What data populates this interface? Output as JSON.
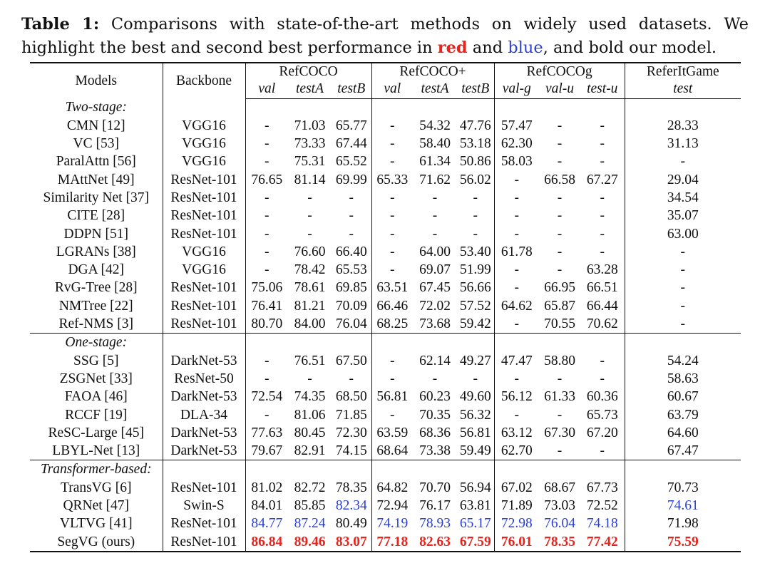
{
  "caption": {
    "label": "Table 1:",
    "text_before": " Comparisons with state-of-the-art methods on widely used datasets. We highlight the best and second best performance in ",
    "red_word": "red",
    "and_word": " and ",
    "blue_word": "blue",
    "text_after": ", and bold our model."
  },
  "headers": {
    "models": "Models",
    "backbone": "Backbone",
    "datasets": [
      "RefCOCO",
      "RefCOCO+",
      "RefCOCOg",
      "ReferItGame"
    ],
    "splits": [
      "val",
      "testA",
      "testB",
      "val",
      "testA",
      "testB",
      "val-g",
      "val-u",
      "test-u",
      "test"
    ]
  },
  "colors": {
    "best": "#e8241c",
    "second": "#2a3fd6"
  },
  "groups": [
    {
      "label": "Two-stage:",
      "rows": [
        {
          "model": "CMN [12]",
          "backbone": "VGG16",
          "values": [
            "-",
            "71.03",
            "65.77",
            "-",
            "54.32",
            "47.76",
            "57.47",
            "-",
            "-",
            "28.33"
          ]
        },
        {
          "model": "VC [53]",
          "backbone": "VGG16",
          "values": [
            "-",
            "73.33",
            "67.44",
            "-",
            "58.40",
            "53.18",
            "62.30",
            "-",
            "-",
            "31.13"
          ]
        },
        {
          "model": "ParalAttn [56]",
          "backbone": "VGG16",
          "values": [
            "-",
            "75.31",
            "65.52",
            "-",
            "61.34",
            "50.86",
            "58.03",
            "-",
            "-",
            "-"
          ]
        },
        {
          "model": "MAttNet [49]",
          "backbone": "ResNet-101",
          "values": [
            "76.65",
            "81.14",
            "69.99",
            "65.33",
            "71.62",
            "56.02",
            "-",
            "66.58",
            "67.27",
            "29.04"
          ]
        },
        {
          "model": "Similarity Net [37]",
          "backbone": "ResNet-101",
          "values": [
            "-",
            "-",
            "-",
            "-",
            "-",
            "-",
            "-",
            "-",
            "-",
            "34.54"
          ]
        },
        {
          "model": "CITE [28]",
          "backbone": "ResNet-101",
          "values": [
            "-",
            "-",
            "-",
            "-",
            "-",
            "-",
            "-",
            "-",
            "-",
            "35.07"
          ]
        },
        {
          "model": "DDPN [51]",
          "backbone": "ResNet-101",
          "values": [
            "-",
            "-",
            "-",
            "-",
            "-",
            "-",
            "-",
            "-",
            "-",
            "63.00"
          ]
        },
        {
          "model": "LGRANs [38]",
          "backbone": "VGG16",
          "values": [
            "-",
            "76.60",
            "66.40",
            "-",
            "64.00",
            "53.40",
            "61.78",
            "-",
            "-",
            "-"
          ]
        },
        {
          "model": "DGA [42]",
          "backbone": "VGG16",
          "values": [
            "-",
            "78.42",
            "65.53",
            "-",
            "69.07",
            "51.99",
            "-",
            "-",
            "63.28",
            "-"
          ]
        },
        {
          "model": "RvG-Tree [28]",
          "backbone": "ResNet-101",
          "values": [
            "75.06",
            "78.61",
            "69.85",
            "63.51",
            "67.45",
            "56.66",
            "-",
            "66.95",
            "66.51",
            "-"
          ]
        },
        {
          "model": "NMTree [22]",
          "backbone": "ResNet-101",
          "values": [
            "76.41",
            "81.21",
            "70.09",
            "66.46",
            "72.02",
            "57.52",
            "64.62",
            "65.87",
            "66.44",
            "-"
          ]
        },
        {
          "model": "Ref-NMS [3]",
          "backbone": "ResNet-101",
          "values": [
            "80.70",
            "84.00",
            "76.04",
            "68.25",
            "73.68",
            "59.42",
            "-",
            "70.55",
            "70.62",
            "-"
          ]
        }
      ]
    },
    {
      "label": "One-stage:",
      "rows": [
        {
          "model": "SSG [5]",
          "backbone": "DarkNet-53",
          "values": [
            "-",
            "76.51",
            "67.50",
            "-",
            "62.14",
            "49.27",
            "47.47",
            "58.80",
            "-",
            "54.24"
          ]
        },
        {
          "model": "ZSGNet [33]",
          "backbone": "ResNet-50",
          "values": [
            "-",
            "-",
            "-",
            "-",
            "-",
            "-",
            "-",
            "-",
            "-",
            "58.63"
          ]
        },
        {
          "model": "FAOA [46]",
          "backbone": "DarkNet-53",
          "values": [
            "72.54",
            "74.35",
            "68.50",
            "56.81",
            "60.23",
            "49.60",
            "56.12",
            "61.33",
            "60.36",
            "60.67"
          ]
        },
        {
          "model": "RCCF [19]",
          "backbone": "DLA-34",
          "values": [
            "-",
            "81.06",
            "71.85",
            "-",
            "70.35",
            "56.32",
            "-",
            "-",
            "65.73",
            "63.79"
          ]
        },
        {
          "model": "ReSC-Large [45]",
          "backbone": "DarkNet-53",
          "values": [
            "77.63",
            "80.45",
            "72.30",
            "63.59",
            "68.36",
            "56.81",
            "63.12",
            "67.30",
            "67.20",
            "64.60"
          ]
        },
        {
          "model": "LBYL-Net [13]",
          "backbone": "DarkNet-53",
          "values": [
            "79.67",
            "82.91",
            "74.15",
            "68.64",
            "73.38",
            "59.49",
            "62.70",
            "-",
            "-",
            "67.47"
          ]
        }
      ]
    },
    {
      "label": "Transformer-based:",
      "rows": [
        {
          "model": "TransVG [6]",
          "backbone": "ResNet-101",
          "values": [
            "81.02",
            "82.72",
            "78.35",
            "64.82",
            "70.70",
            "56.94",
            "67.02",
            "68.67",
            "67.73",
            "70.73"
          ]
        },
        {
          "model": "QRNet [47]",
          "backbone": "Swin-S",
          "values": [
            "84.01",
            "85.85",
            "82.34",
            "72.94",
            "76.17",
            "63.81",
            "71.89",
            "73.03",
            "72.52",
            "74.61"
          ],
          "blue": [
            2,
            9
          ]
        },
        {
          "model": "VLTVG [41]",
          "backbone": "ResNet-101",
          "values": [
            "84.77",
            "87.24",
            "80.49",
            "74.19",
            "78.93",
            "65.17",
            "72.98",
            "76.04",
            "74.18",
            "71.98"
          ],
          "blue": [
            0,
            1,
            3,
            4,
            5,
            6,
            7,
            8
          ]
        },
        {
          "model": "SegVG (ours)",
          "backbone": "ResNet-101",
          "values": [
            "86.84",
            "89.46",
            "83.07",
            "77.18",
            "82.63",
            "67.59",
            "76.01",
            "78.35",
            "77.42",
            "75.59"
          ],
          "red": [
            0,
            1,
            2,
            3,
            4,
            5,
            6,
            7,
            8,
            9
          ]
        }
      ]
    }
  ]
}
